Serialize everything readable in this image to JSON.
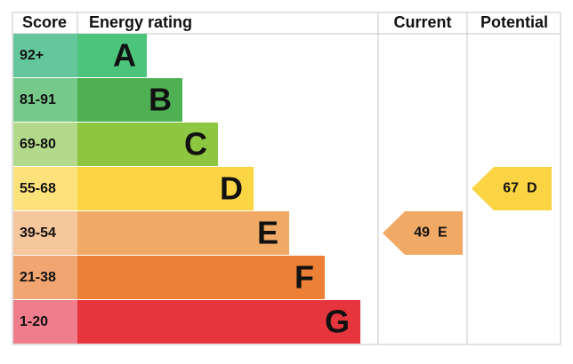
{
  "header": {
    "score": "Score",
    "rating": "Energy rating",
    "current": "Current",
    "potential": "Potential"
  },
  "bands": [
    {
      "range": "92+",
      "letter": "A",
      "color": "#4cc47c",
      "score_color": "#64c69b"
    },
    {
      "range": "81-91",
      "letter": "B",
      "color": "#4fb053",
      "score_color": "#77c98a"
    },
    {
      "range": "69-80",
      "letter": "C",
      "color": "#8dc640",
      "score_color": "#b3da8b"
    },
    {
      "range": "55-68",
      "letter": "D",
      "color": "#fbd443",
      "score_color": "#fde27c"
    },
    {
      "range": "39-54",
      "letter": "E",
      "color": "#f1aa65",
      "score_color": "#f6c69c"
    },
    {
      "range": "21-38",
      "letter": "F",
      "color": "#ec8037",
      "score_color": "#f1a571"
    },
    {
      "range": "1-20",
      "letter": "G",
      "color": "#e7353e",
      "score_color": "#ef7d8c"
    }
  ],
  "current": {
    "value": 49,
    "letter": "E"
  },
  "potential": {
    "value": 67,
    "letter": "D"
  }
}
